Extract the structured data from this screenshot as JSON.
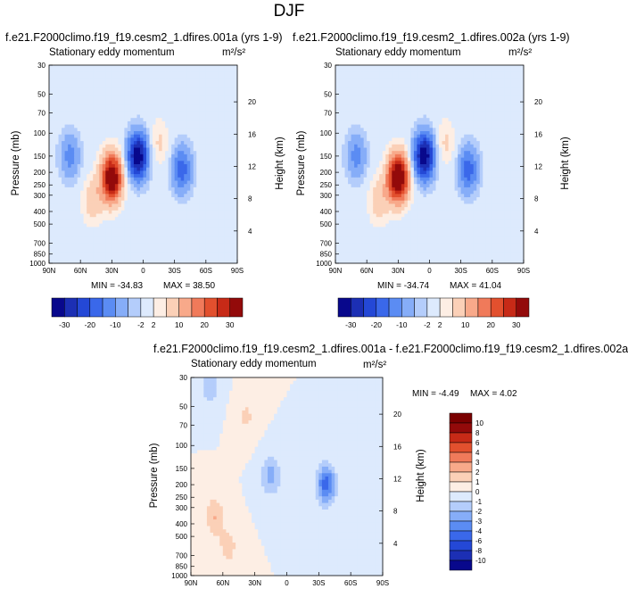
{
  "figure": {
    "title": "DJF"
  },
  "colors": {
    "main_levels": [
      -30,
      -25,
      -20,
      -15,
      -10,
      -5,
      -2,
      2,
      5,
      10,
      15,
      20,
      25,
      30
    ],
    "main_palette": [
      "#08088c",
      "#1c2fb4",
      "#2448d6",
      "#3a68ea",
      "#5b8cf3",
      "#86adf8",
      "#b4cdfb",
      "#ddeafd",
      "#fdeee4",
      "#fbd0b7",
      "#f8a98a",
      "#f07a5a",
      "#e2502e",
      "#c72a17",
      "#930a0a"
    ],
    "diff_levels": [
      -10,
      -8,
      -6,
      -4,
      -3,
      -2,
      -1,
      0,
      1,
      2,
      3,
      4,
      6,
      8,
      10
    ],
    "diff_palette": [
      "#08088c",
      "#1c2fb4",
      "#2448d6",
      "#3a68ea",
      "#5b8cf3",
      "#86adf8",
      "#b4cdfb",
      "#ddeafd",
      "#fdeee4",
      "#fbd0b7",
      "#f8a98a",
      "#f07a5a",
      "#e2502e",
      "#c72a17",
      "#930a0a",
      "#7a0000"
    ]
  },
  "chart_data": [
    {
      "type": "heatmap",
      "title": "f.e21.F2000climo.f19_f19.cesm2_1.dfires.001a (yrs 1-9)",
      "left_label": "Stationary eddy momentum",
      "units": "m²/s²",
      "xlabel": "",
      "ylabel": "Pressure (mb)",
      "y2label": "Height (km)",
      "x_ticks": [
        "90N",
        "60N",
        "30N",
        "0",
        "30S",
        "60S",
        "90S"
      ],
      "y_ticks": [
        30,
        50,
        70,
        100,
        150,
        200,
        250,
        300,
        400,
        500,
        700,
        850,
        1000
      ],
      "y2_ticks": [
        4,
        8,
        12,
        16,
        20
      ],
      "scale": "log-pressure",
      "min_label": "MIN = -34.83",
      "max_label": "MAX = 38.50",
      "min": -34.83,
      "max": 38.5,
      "colorbar_ticks": [
        "-30",
        "-20",
        "-10",
        "-2",
        "2",
        "10",
        "20",
        "30"
      ],
      "features": [
        {
          "lat": 30,
          "p": 220,
          "value": 38.5
        },
        {
          "lat": 5,
          "p": 150,
          "value": -34.83
        },
        {
          "lat": 70,
          "p": 150,
          "value": -12
        },
        {
          "lat": -37,
          "p": 190,
          "value": -18
        },
        {
          "lat": 48,
          "p": 330,
          "value": 8
        },
        {
          "lat": -15,
          "p": 120,
          "value": 6
        }
      ]
    },
    {
      "type": "heatmap",
      "title": "f.e21.F2000climo.f19_f19.cesm2_1.dfires.002a (yrs 1-9)",
      "left_label": "Stationary eddy momentum",
      "units": "m²/s²",
      "xlabel": "",
      "ylabel": "Pressure (mb)",
      "y2label": "Height (km)",
      "x_ticks": [
        "90N",
        "60N",
        "30N",
        "0",
        "30S",
        "60S",
        "90S"
      ],
      "y_ticks": [
        30,
        50,
        70,
        100,
        150,
        200,
        250,
        300,
        400,
        500,
        700,
        850,
        1000
      ],
      "y2_ticks": [
        4,
        8,
        12,
        16,
        20
      ],
      "scale": "log-pressure",
      "min_label": "MIN = -34.74",
      "max_label": "MAX = 41.04",
      "min": -34.74,
      "max": 41.04,
      "colorbar_ticks": [
        "-30",
        "-20",
        "-10",
        "-2",
        "2",
        "10",
        "20",
        "30"
      ],
      "features": [
        {
          "lat": 30,
          "p": 220,
          "value": 41.04
        },
        {
          "lat": 5,
          "p": 150,
          "value": -34.74
        },
        {
          "lat": 70,
          "p": 150,
          "value": -12
        },
        {
          "lat": -37,
          "p": 190,
          "value": -18
        },
        {
          "lat": 48,
          "p": 330,
          "value": 8
        },
        {
          "lat": -15,
          "p": 120,
          "value": 6
        }
      ]
    },
    {
      "type": "heatmap",
      "title": "f.e21.F2000climo.f19_f19.cesm2_1.dfires.001a - f.e21.F2000climo.f19_f19.cesm2_1.dfires.002a",
      "left_label": "Stationary eddy momentum",
      "units": "m²/s²",
      "xlabel": "",
      "ylabel": "Pressure (mb)",
      "y2label": "Height (km)",
      "x_ticks": [
        "90N",
        "60N",
        "30N",
        "0",
        "30S",
        "60S",
        "90S"
      ],
      "y_ticks": [
        30,
        50,
        70,
        100,
        150,
        200,
        250,
        300,
        400,
        500,
        700,
        850,
        1000
      ],
      "y2_ticks": [
        4,
        8,
        12,
        16,
        20
      ],
      "scale": "log-pressure",
      "min_label": "MIN = -4.49",
      "max_label": "MAX =  4.02",
      "min": -4.49,
      "max": 4.02,
      "colorbar_ticks": [
        "10",
        "8",
        "6",
        "4",
        "3",
        "2",
        "1",
        "0",
        "-1",
        "-2",
        "-3",
        "-4",
        "-6",
        "-8",
        "-10"
      ],
      "features": [
        {
          "lat": -37,
          "p": 200,
          "value": -4.49
        },
        {
          "lat": 15,
          "p": 170,
          "value": -2.5
        },
        {
          "lat": 68,
          "p": 350,
          "value": 2
        },
        {
          "lat": 55,
          "p": 600,
          "value": 1.5
        },
        {
          "lat": 72,
          "p": 33,
          "value": -2
        },
        {
          "lat": 38,
          "p": 60,
          "value": 1.2
        }
      ]
    }
  ]
}
